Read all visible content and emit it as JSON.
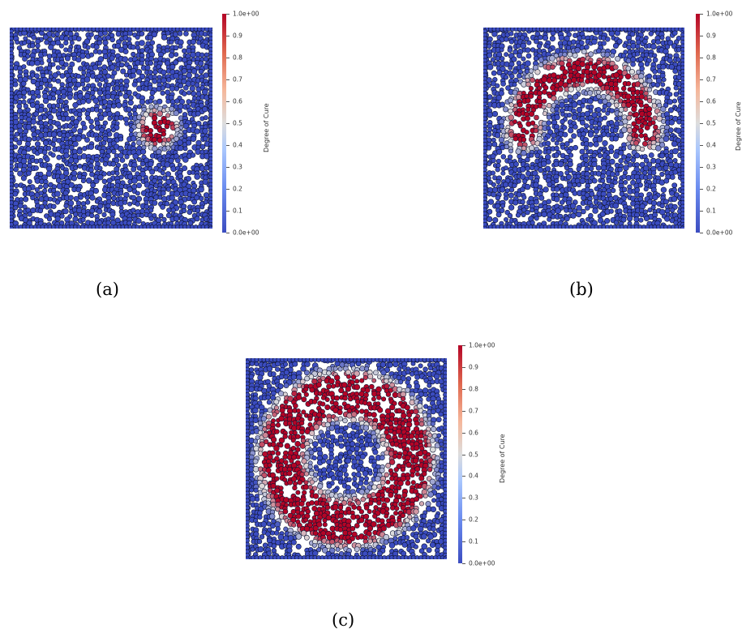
{
  "colorbar": {
    "title": "Degree of Cure",
    "ticks": [
      "1.0e+00",
      "0.9",
      "0.8",
      "0.7",
      "0.6",
      "0.5",
      "0.4",
      "0.3",
      "0.2",
      "0.1",
      "0.0e+00"
    ],
    "colors": {
      "low": "#3b4cc0",
      "mid": "#dddddd",
      "high": "#b40426"
    }
  },
  "panels": [
    {
      "id": "a",
      "caption": "(a)",
      "cured_region": "disc"
    },
    {
      "id": "b",
      "caption": "(b)",
      "cured_region": "arc"
    },
    {
      "id": "c",
      "caption": "(c)",
      "cured_region": "annulus"
    }
  ]
}
